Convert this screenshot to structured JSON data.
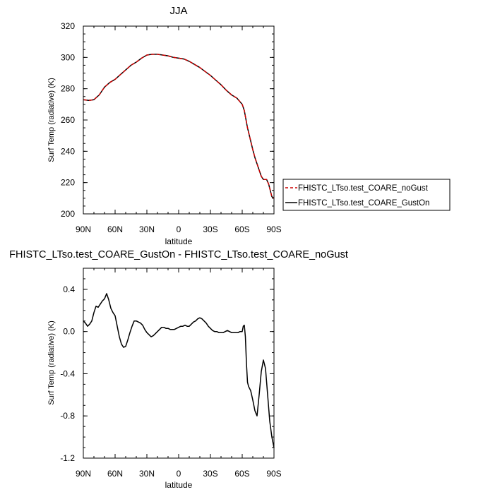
{
  "chart_data": [
    {
      "type": "line",
      "title": "JJA",
      "xlabel": "latitude",
      "ylabel": "Surf Temp (radiative) (K)",
      "xlim": [
        90,
        -90
      ],
      "ylim": [
        200,
        320
      ],
      "xticks": [
        "90N",
        "60N",
        "30N",
        "0",
        "30S",
        "60S",
        "90S"
      ],
      "yticks": [
        "200",
        "220",
        "240",
        "260",
        "280",
        "300",
        "320"
      ],
      "legend_position": "right",
      "series": [
        {
          "name": "FHISTC_LTso.test_COARE_noGust",
          "color": "#cc0000",
          "dash": "dashed",
          "x": [
            90,
            85,
            80,
            75,
            70,
            65,
            60,
            55,
            50,
            45,
            40,
            35,
            30,
            25,
            20,
            15,
            10,
            5,
            0,
            -5,
            -10,
            -15,
            -20,
            -25,
            -30,
            -35,
            -40,
            -45,
            -50,
            -55,
            -60,
            -62,
            -65,
            -70,
            -72,
            -75,
            -78,
            -80,
            -83,
            -85,
            -88,
            -90
          ],
          "y": [
            273,
            272.5,
            273,
            276,
            281,
            284,
            286,
            289,
            292,
            295,
            297,
            299.5,
            301.5,
            302,
            302,
            301.5,
            301,
            300,
            299.5,
            299,
            297.5,
            295.5,
            293.5,
            291,
            288.5,
            285.5,
            282.5,
            279,
            276,
            274,
            270,
            266,
            255,
            241,
            236,
            230,
            224,
            222,
            222,
            219,
            211,
            210
          ]
        },
        {
          "name": "FHISTC_LTso.test_COARE_GustOn",
          "color": "#000000",
          "dash": "solid",
          "x": [
            90,
            85,
            80,
            75,
            70,
            65,
            60,
            55,
            50,
            45,
            40,
            35,
            30,
            25,
            20,
            15,
            10,
            5,
            0,
            -5,
            -10,
            -15,
            -20,
            -25,
            -30,
            -35,
            -40,
            -45,
            -50,
            -55,
            -60,
            -62,
            -65,
            -70,
            -72,
            -75,
            -78,
            -80,
            -83,
            -85,
            -88,
            -90
          ],
          "y": [
            273,
            272.5,
            273,
            276,
            281,
            284,
            286,
            289,
            292,
            295,
            297,
            299.5,
            301.5,
            302,
            302,
            301.5,
            301,
            300,
            299.5,
            299,
            297.5,
            295.5,
            293.5,
            291,
            288.5,
            285.5,
            282.5,
            279,
            276,
            274,
            270,
            266,
            255,
            241,
            236,
            230,
            224,
            222,
            222,
            219,
            211,
            210
          ]
        }
      ]
    },
    {
      "type": "line",
      "title": "FHISTC_LTso.test_COARE_GustOn - FHISTC_LTso.test_COARE_noGust",
      "xlabel": "latitude",
      "ylabel": "Surf Temp (radiative) (K)",
      "xlim": [
        90,
        -90
      ],
      "ylim": [
        -1.2,
        0.6
      ],
      "xticks": [
        "90N",
        "60N",
        "30N",
        "0",
        "30S",
        "60S",
        "90S"
      ],
      "yticks": [
        "-1.2",
        "-0.8",
        "-0.4",
        "0.0",
        "0.4"
      ],
      "series": [
        {
          "color": "#000000",
          "x": [
            90,
            88,
            86,
            84,
            82,
            80,
            78,
            76,
            74,
            72,
            70,
            68,
            66,
            64,
            62,
            60,
            58,
            56,
            54,
            52,
            50,
            48,
            46,
            44,
            42,
            40,
            38,
            36,
            34,
            32,
            30,
            28,
            26,
            24,
            22,
            20,
            18,
            16,
            14,
            12,
            10,
            8,
            6,
            4,
            2,
            0,
            -2,
            -4,
            -6,
            -8,
            -10,
            -12,
            -14,
            -16,
            -18,
            -20,
            -22,
            -24,
            -26,
            -28,
            -30,
            -32,
            -34,
            -36,
            -38,
            -40,
            -42,
            -44,
            -46,
            -48,
            -50,
            -52,
            -54,
            -56,
            -58,
            -60,
            -61,
            -62,
            -63,
            -64,
            -65,
            -66,
            -68,
            -70,
            -72,
            -74,
            -76,
            -78,
            -80,
            -82,
            -84,
            -86,
            -88,
            -90
          ],
          "y": [
            0.1,
            0.08,
            0.05,
            0.07,
            0.1,
            0.18,
            0.24,
            0.23,
            0.26,
            0.29,
            0.31,
            0.36,
            0.3,
            0.22,
            0.18,
            0.15,
            0.05,
            -0.05,
            -0.12,
            -0.15,
            -0.14,
            -0.08,
            -0.01,
            0.05,
            0.1,
            0.1,
            0.09,
            0.08,
            0.06,
            0.02,
            -0.01,
            -0.03,
            -0.05,
            -0.04,
            -0.02,
            0.0,
            0.02,
            0.04,
            0.04,
            0.03,
            0.03,
            0.02,
            0.02,
            0.02,
            0.03,
            0.04,
            0.05,
            0.05,
            0.06,
            0.05,
            0.05,
            0.07,
            0.09,
            0.1,
            0.12,
            0.13,
            0.12,
            0.1,
            0.08,
            0.05,
            0.03,
            0.01,
            0.0,
            0.0,
            -0.01,
            -0.01,
            -0.01,
            0.0,
            0.01,
            0.0,
            -0.01,
            -0.01,
            -0.01,
            -0.01,
            0.0,
            0.0,
            0.05,
            0.06,
            -0.05,
            -0.3,
            -0.48,
            -0.52,
            -0.56,
            -0.65,
            -0.75,
            -0.8,
            -0.6,
            -0.38,
            -0.27,
            -0.35,
            -0.6,
            -0.85,
            -1.0,
            -1.1
          ]
        }
      ]
    }
  ]
}
